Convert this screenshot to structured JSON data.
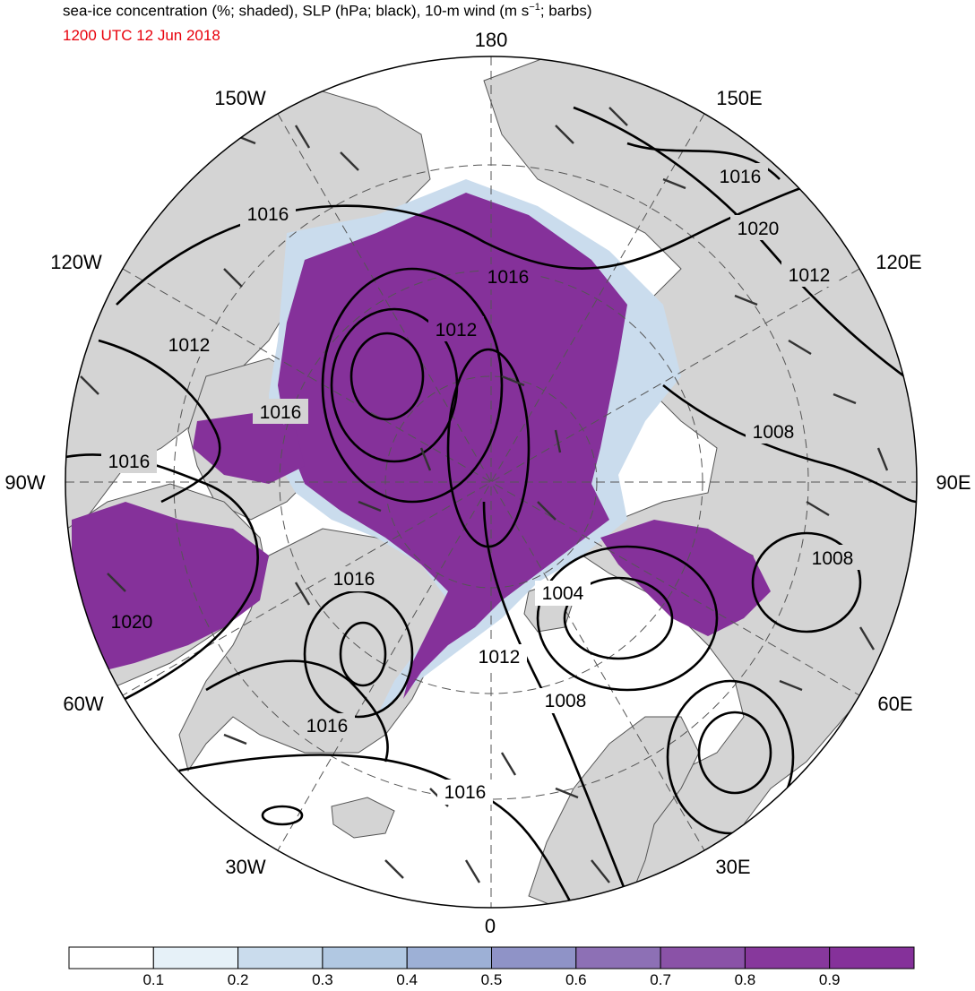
{
  "header": {
    "title_main": "sea-ice concentration (%; shaded), SLP (hPa; black), 10-m wind (m s",
    "title_sup": "−1",
    "title_end": "; barbs)",
    "date": "1200 UTC 12 Jun 2018",
    "date_color": "#e8000b"
  },
  "longitude_labels": [
    "180",
    "150E",
    "120E",
    "90E",
    "60E",
    "30E",
    "0",
    "30W",
    "60W",
    "90W",
    "120W",
    "150W"
  ],
  "isobar_labels": [
    "1016",
    "1020",
    "1016",
    "1012",
    "1016",
    "1012",
    "1012",
    "1008",
    "1016",
    "1016",
    "1008",
    "1004",
    "1016",
    "1012",
    "1020",
    "1008",
    "1016",
    "1016"
  ],
  "colorbar": {
    "ticks": [
      "0.1",
      "0.2",
      "0.3",
      "0.4",
      "0.5",
      "0.6",
      "0.7",
      "0.8",
      "0.9"
    ],
    "colors": [
      "#ffffff",
      "#e6f1f8",
      "#cadced",
      "#b1c8e2",
      "#9db0d6",
      "#8f93c7",
      "#8d70b5",
      "#8a52a7",
      "#87389c",
      "#85319a"
    ]
  },
  "style": {
    "land_color": "#d4d4d4",
    "ocean_color": "#ffffff",
    "ice_color": "#85319a",
    "isobar_color": "#000000"
  }
}
